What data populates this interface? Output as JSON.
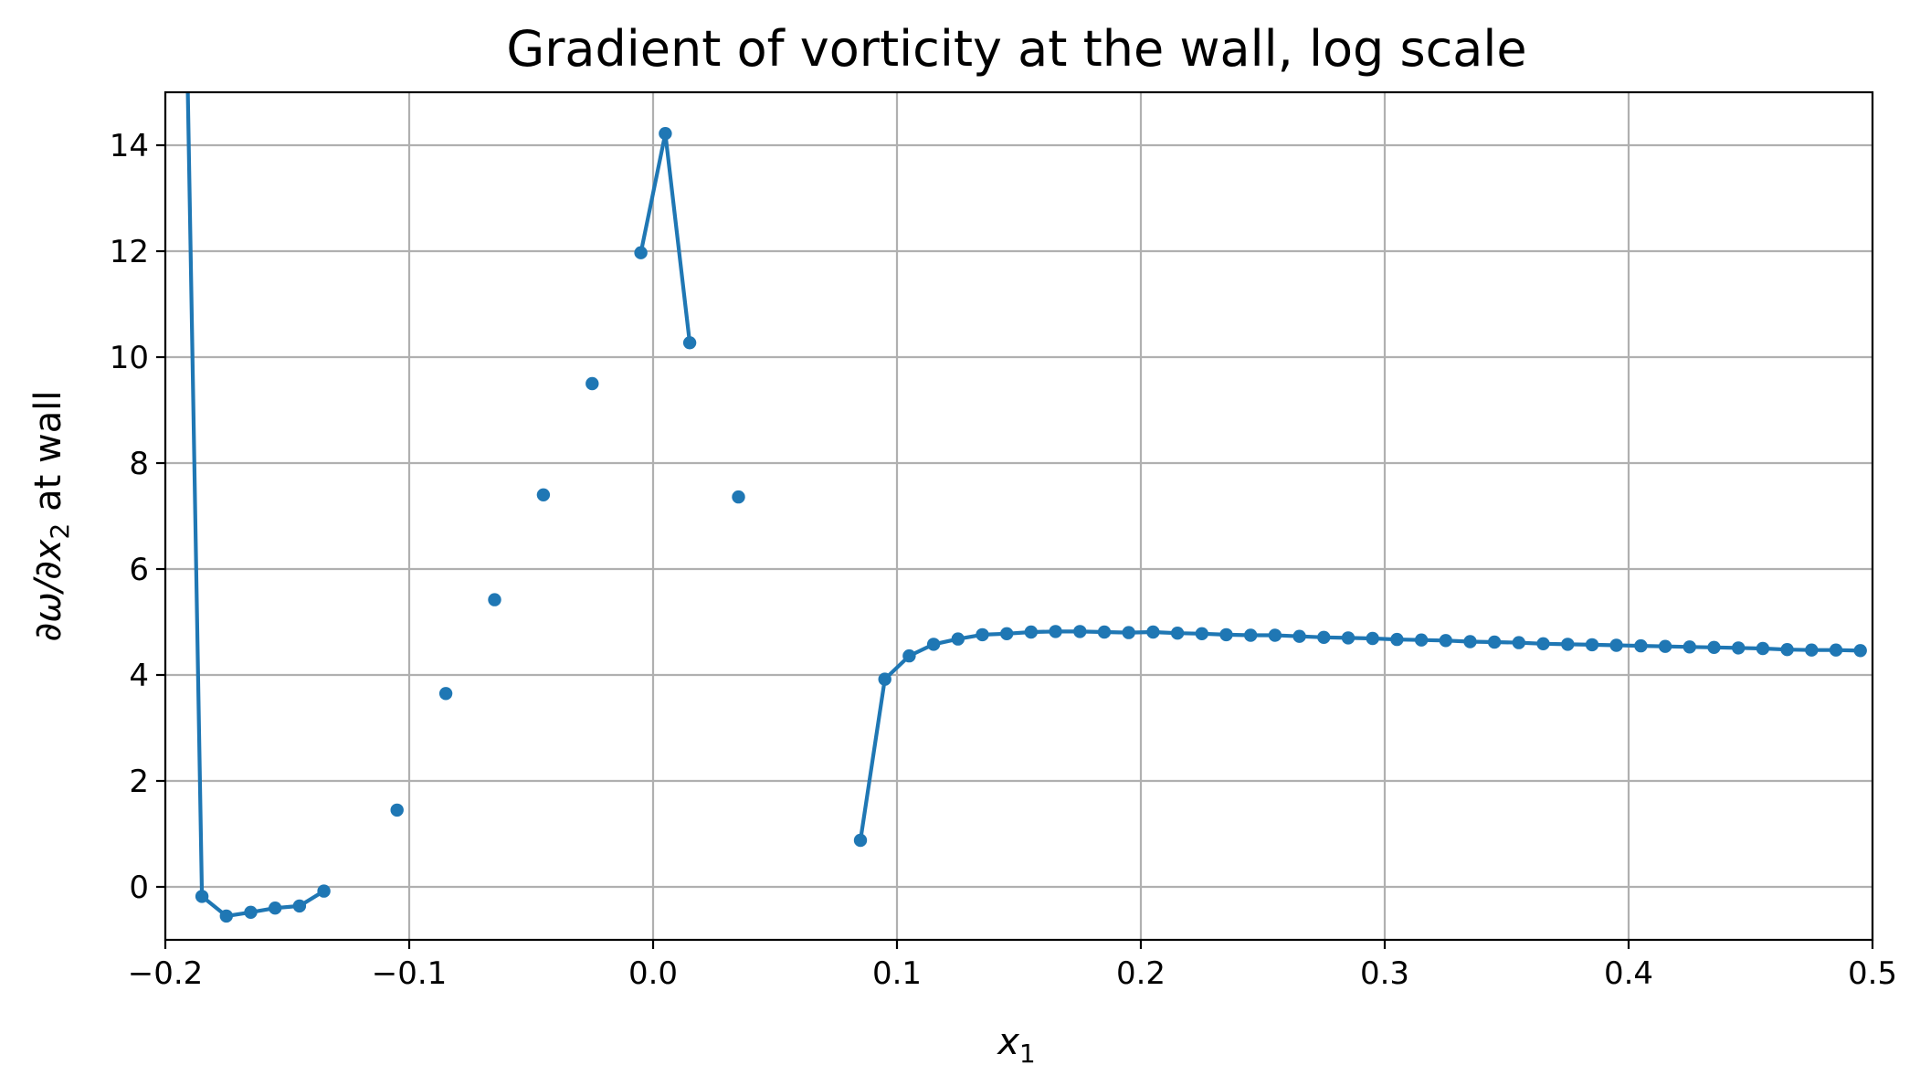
{
  "chart_data": {
    "type": "line",
    "title": "Gradient of vorticity at the wall, log scale",
    "xlabel": {
      "main": "x",
      "sub": "1"
    },
    "ylabel": {
      "pre": "∂ω/∂x",
      "sub": "2",
      "post": " at wall"
    },
    "xlim": [
      -0.2,
      0.5
    ],
    "ylim": [
      -1,
      15
    ],
    "xticks": [
      -0.2,
      -0.1,
      0.0,
      0.1,
      0.2,
      0.3,
      0.4,
      0.5
    ],
    "xtick_labels": [
      "−0.2",
      "−0.1",
      "0.0",
      "0.1",
      "0.2",
      "0.3",
      "0.4",
      "0.5"
    ],
    "yticks": [
      0,
      2,
      4,
      6,
      8,
      10,
      12,
      14
    ],
    "ytick_labels": [
      "0",
      "2",
      "4",
      "6",
      "8",
      "10",
      "12",
      "14"
    ],
    "grid": true,
    "color": "#1f77b4",
    "x": [
      -0.195,
      -0.185,
      -0.175,
      -0.165,
      -0.155,
      -0.145,
      -0.135,
      -0.125,
      -0.115,
      -0.105,
      -0.095,
      -0.085,
      -0.075,
      -0.065,
      -0.055,
      -0.045,
      -0.035,
      -0.025,
      -0.015,
      -0.005,
      0.005,
      0.015,
      0.025,
      0.035,
      0.045,
      0.055,
      0.065,
      0.075,
      0.085,
      0.095,
      0.105,
      0.115,
      0.125,
      0.135,
      0.145,
      0.155,
      0.165,
      0.175,
      0.185,
      0.195,
      0.205,
      0.215,
      0.225,
      0.235,
      0.245,
      0.255,
      0.265,
      0.275,
      0.285,
      0.295,
      0.305,
      0.315,
      0.325,
      0.335,
      0.345,
      0.355,
      0.365,
      0.375,
      0.385,
      0.395,
      0.405,
      0.415,
      0.425,
      0.435,
      0.445,
      0.455,
      0.465,
      0.475,
      0.485,
      0.495
    ],
    "y": [
      26.0,
      -0.18,
      -0.55,
      -0.48,
      -0.4,
      -0.36,
      -0.08,
      null,
      null,
      1.45,
      null,
      3.65,
      null,
      5.42,
      null,
      7.4,
      null,
      9.5,
      null,
      11.97,
      14.22,
      10.27,
      null,
      7.36,
      null,
      null,
      null,
      null,
      0.88,
      3.92,
      4.36,
      4.58,
      4.68,
      4.76,
      4.78,
      4.81,
      4.82,
      4.82,
      4.81,
      4.8,
      4.81,
      4.79,
      4.78,
      4.76,
      4.75,
      4.75,
      4.73,
      4.71,
      4.7,
      4.69,
      4.67,
      4.66,
      4.65,
      4.63,
      4.62,
      4.61,
      4.59,
      4.58,
      4.57,
      4.56,
      4.55,
      4.54,
      4.53,
      4.52,
      4.51,
      4.5,
      4.48,
      4.47,
      4.47,
      4.46
    ]
  }
}
